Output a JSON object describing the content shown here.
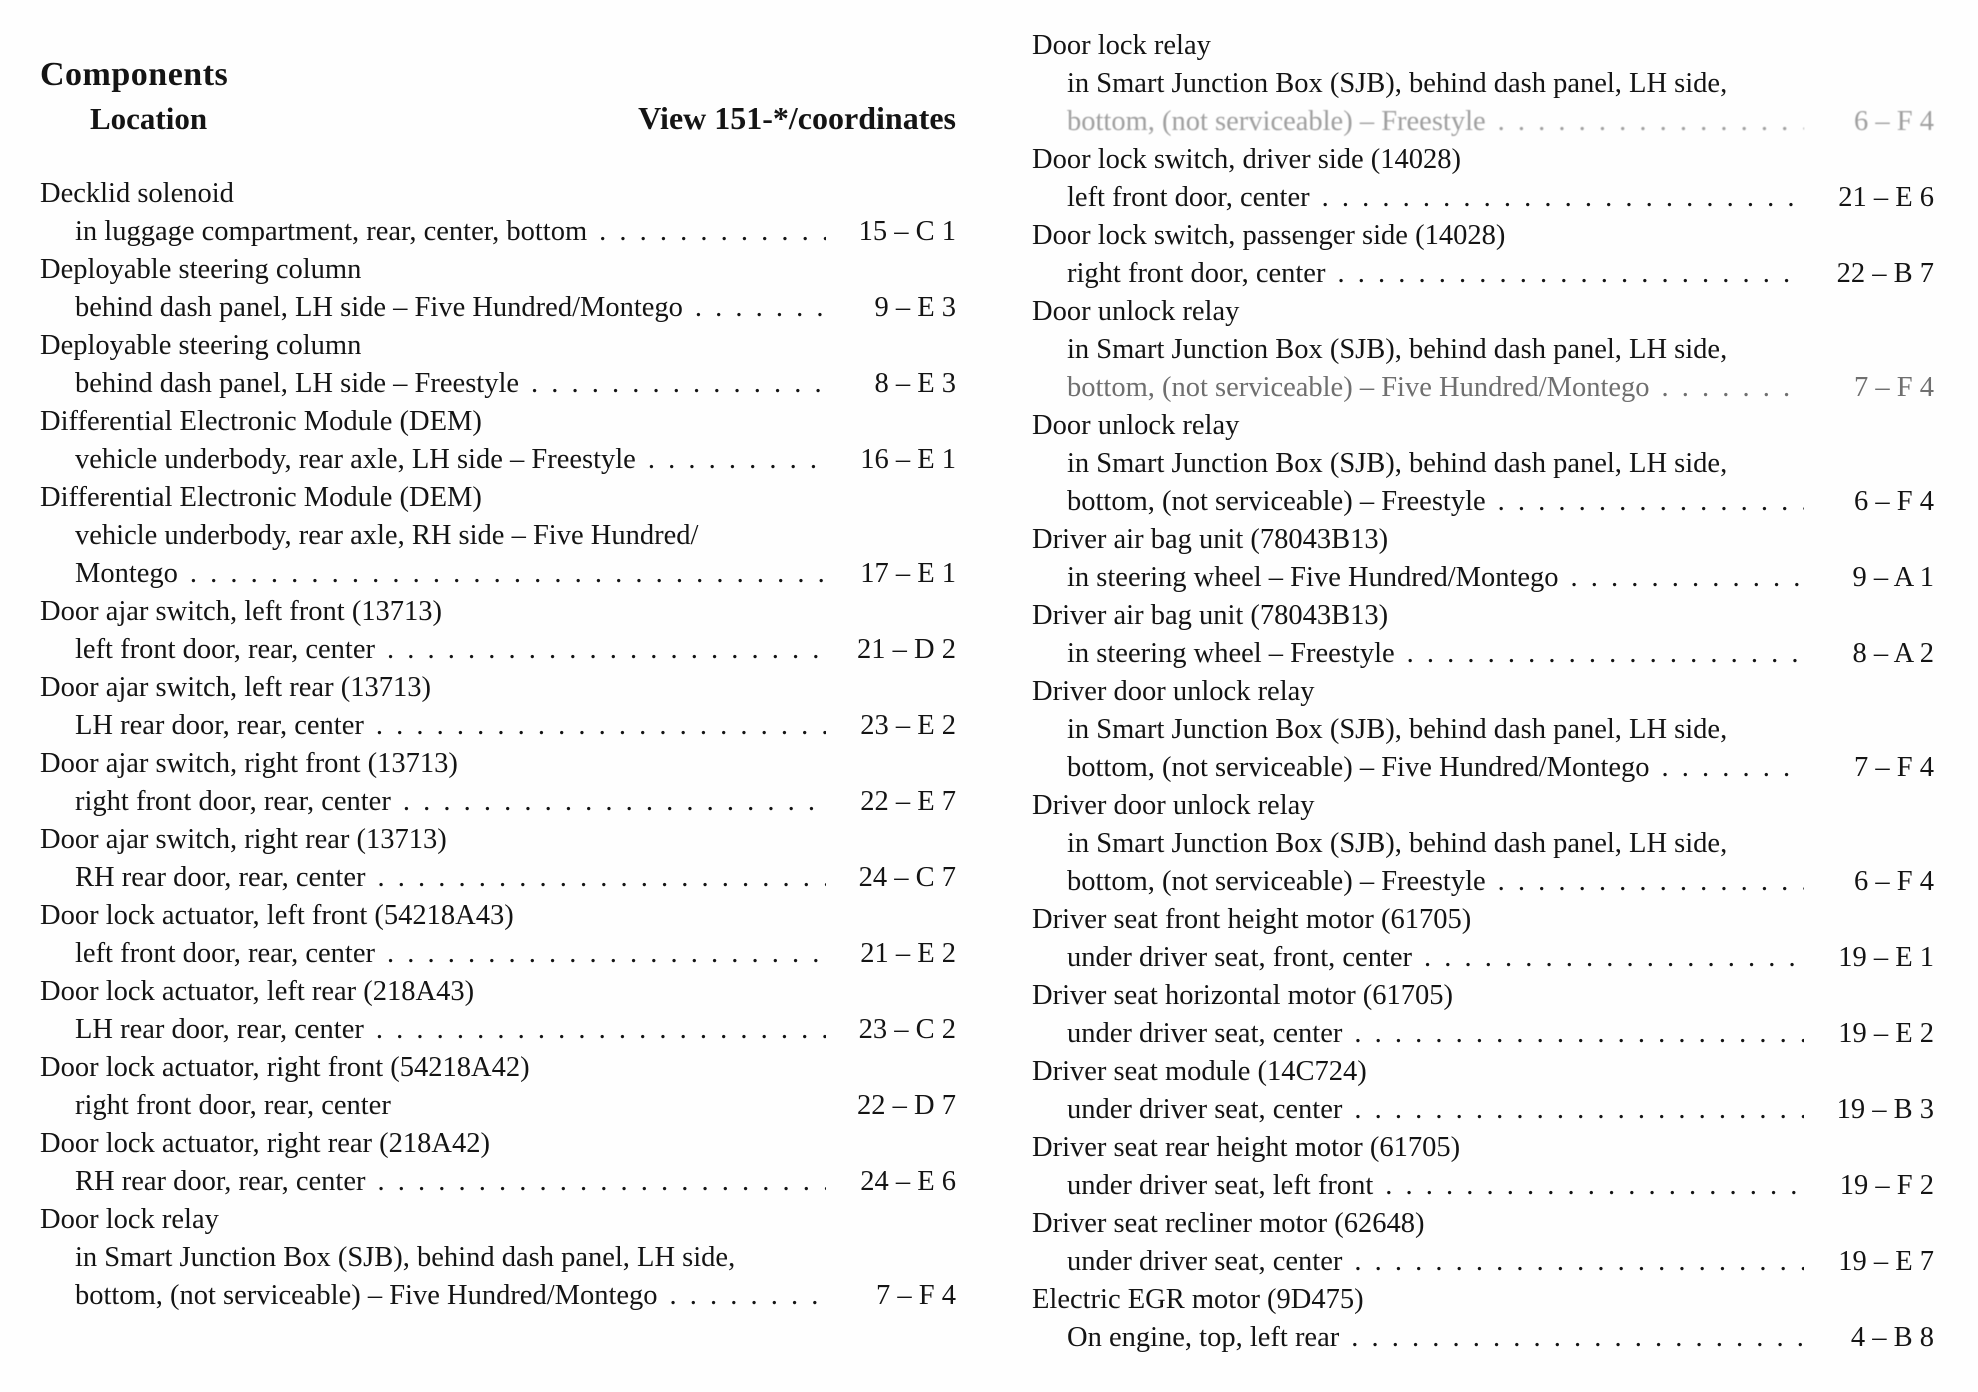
{
  "header": {
    "title": "Components",
    "subtitle": "Location",
    "view_label": "View 151-*/coordinates"
  },
  "columns": {
    "left": [
      {
        "name": "Decklid solenoid",
        "lines": [
          {
            "text": "in luggage compartment, rear, center, bottom",
            "coord": "15 – C 1",
            "leader": true
          }
        ]
      },
      {
        "name": "Deployable steering column",
        "lines": [
          {
            "text": "behind dash panel, LH side – Five Hundred/Montego",
            "coord": "9 – E 3",
            "leader": true
          }
        ]
      },
      {
        "name": "Deployable steering column",
        "lines": [
          {
            "text": "behind dash panel, LH side – Freestyle",
            "coord": "8 – E 3",
            "leader": true
          }
        ]
      },
      {
        "name": "Differential Electronic Module (DEM)",
        "lines": [
          {
            "text": "vehicle underbody, rear axle, LH side – Freestyle",
            "coord": "16 – E 1",
            "leader": true
          }
        ]
      },
      {
        "name": "Differential Electronic Module (DEM)",
        "lines": [
          {
            "text": "vehicle underbody, rear axle, RH side – Five Hundred/"
          },
          {
            "text": "Montego",
            "coord": "17 – E 1",
            "leader": true
          }
        ]
      },
      {
        "name": "Door ajar switch, left front (13713)",
        "lines": [
          {
            "text": "left front door, rear, center",
            "coord": "21 – D 2",
            "leader": true
          }
        ]
      },
      {
        "name": "Door ajar switch, left rear (13713)",
        "lines": [
          {
            "text": "LH rear door, rear, center",
            "coord": "23 – E 2",
            "leader": true
          }
        ]
      },
      {
        "name": "Door ajar switch, right front (13713)",
        "lines": [
          {
            "text": "right front door, rear, center",
            "coord": "22 – E 7",
            "leader": true
          }
        ]
      },
      {
        "name": "Door ajar switch, right rear (13713)",
        "lines": [
          {
            "text": "RH rear door, rear, center",
            "coord": "24 – C 7",
            "leader": true
          }
        ]
      },
      {
        "name": "Door lock actuator, left front (54218A43)",
        "lines": [
          {
            "text": "left front door, rear, center",
            "coord": "21 – E 2",
            "leader": true
          }
        ]
      },
      {
        "name": "Door lock actuator, left rear (218A43)",
        "lines": [
          {
            "text": "LH rear door, rear, center",
            "coord": "23 – C 2",
            "leader": true
          }
        ]
      },
      {
        "name": "Door lock actuator, right front (54218A42)",
        "lines": [
          {
            "text": "right front door, rear, center",
            "coord": "22 – D 7",
            "leader": false
          }
        ]
      },
      {
        "name": "Door lock actuator, right rear (218A42)",
        "lines": [
          {
            "text": "RH rear door, rear, center",
            "coord": "24 – E 6",
            "leader": true
          }
        ]
      },
      {
        "name": "Door lock relay",
        "lines": [
          {
            "text": "in Smart Junction Box (SJB), behind dash panel, LH side,"
          },
          {
            "text": "bottom, (not serviceable) – Five Hundred/Montego",
            "coord": "7 – F 4",
            "leader": true
          }
        ]
      }
    ],
    "right": [
      {
        "name": "Door lock relay",
        "lines": [
          {
            "text": "in Smart Junction Box (SJB), behind dash panel, LH side,"
          },
          {
            "text": "bottom, (not serviceable) – Freestyle",
            "coord": "6 – F 4",
            "leader": true,
            "faded": true
          }
        ]
      },
      {
        "name": "Door lock switch, driver side (14028)",
        "lines": [
          {
            "text": "left front door, center",
            "coord": "21 – E 6",
            "leader": true
          }
        ]
      },
      {
        "name": "Door lock switch, passenger side (14028)",
        "lines": [
          {
            "text": "right front door, center",
            "coord": "22 – B 7",
            "leader": true
          }
        ]
      },
      {
        "name": "Door unlock relay",
        "lines": [
          {
            "text": "in Smart Junction Box (SJB), behind dash panel, LH side,"
          },
          {
            "text": "bottom, (not serviceable) – Five Hundred/Montego",
            "coord": "7 – F 4",
            "leader": true,
            "dim": true
          }
        ]
      },
      {
        "name": "Door unlock relay",
        "lines": [
          {
            "text": "in Smart Junction Box (SJB), behind dash panel, LH side,"
          },
          {
            "text": "bottom, (not serviceable) – Freestyle",
            "coord": "6 – F 4",
            "leader": true
          }
        ]
      },
      {
        "name": "Driver air bag unit (78043B13)",
        "lines": [
          {
            "text": "in steering wheel – Five Hundred/Montego",
            "coord": "9 – A 1",
            "leader": true
          }
        ]
      },
      {
        "name": "Driver air bag unit (78043B13)",
        "lines": [
          {
            "text": "in steering wheel – Freestyle",
            "coord": "8 – A 2",
            "leader": true
          }
        ]
      },
      {
        "name": "Driver door unlock relay",
        "lines": [
          {
            "text": "in Smart Junction Box (SJB), behind dash panel, LH side,"
          },
          {
            "text": "bottom, (not serviceable) – Five Hundred/Montego",
            "coord": "7 – F 4",
            "leader": true
          }
        ]
      },
      {
        "name": "Driver door unlock relay",
        "lines": [
          {
            "text": "in Smart Junction Box (SJB), behind dash panel, LH side,"
          },
          {
            "text": "bottom, (not serviceable) – Freestyle",
            "coord": "6 – F 4",
            "leader": true
          }
        ]
      },
      {
        "name": "Driver seat front height motor (61705)",
        "lines": [
          {
            "text": "under driver seat, front, center",
            "coord": "19 – E 1",
            "leader": true
          }
        ]
      },
      {
        "name": "Driver seat horizontal motor (61705)",
        "lines": [
          {
            "text": "under driver seat, center",
            "coord": "19 – E 2",
            "leader": true
          }
        ]
      },
      {
        "name": "Driver seat module (14C724)",
        "lines": [
          {
            "text": "under driver seat, center",
            "coord": "19 – B 3",
            "leader": true
          }
        ]
      },
      {
        "name": "Driver seat rear height motor (61705)",
        "lines": [
          {
            "text": "under driver seat, left front",
            "coord": "19 – F 2",
            "leader": true
          }
        ]
      },
      {
        "name": "Driver seat recliner motor (62648)",
        "lines": [
          {
            "text": "under driver seat, center",
            "coord": "19 – E 7",
            "leader": true
          }
        ]
      },
      {
        "name": "Electric EGR motor (9D475)",
        "lines": [
          {
            "text": "On engine, top, left rear",
            "coord": "4 – B 8",
            "leader": true
          }
        ]
      }
    ]
  }
}
